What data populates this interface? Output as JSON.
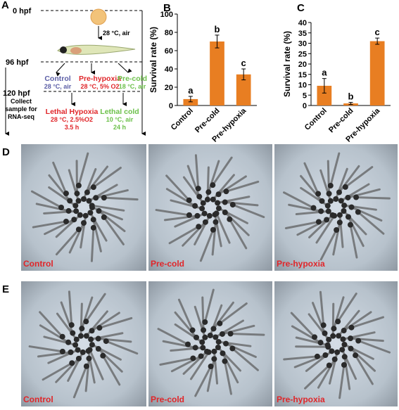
{
  "diagram": {
    "panel": "A",
    "t0": "0 hpf",
    "t96": "96 hpf",
    "t120": "120 hpf",
    "egg_cond": "28 °C, air",
    "control": "Control",
    "control_cond": "28 °C, air",
    "prehyp": "Pre-hypoxia",
    "prehyp_cond": "28 °C, 5% O2",
    "precold": "Pre-cold",
    "precold_cond": "18 °C, air",
    "collect": [
      "Collect",
      "sample for",
      "RNA-seq"
    ],
    "lethal_hyp": "Lethal Hypoxia",
    "lethal_hyp_cond": "28 °C, 2.5%O2",
    "lethal_hyp_time": "3.5 h",
    "lethal_cold": "Lethal cold",
    "lethal_cold_cond": "10 °C, air",
    "lethal_cold_time": "24 h"
  },
  "chart_data": [
    {
      "type": "bar",
      "panel": "B",
      "y_label": "Survival rate (%)",
      "categories": [
        "Control",
        "Pre-cold",
        "Pre-hypoxia"
      ],
      "values": [
        7,
        70,
        34
      ],
      "errors": [
        3,
        7,
        6
      ],
      "annotations": [
        "a",
        "b",
        "c"
      ],
      "color": "#e87e22",
      "ylim": [
        0,
        100
      ],
      "yticks": [
        0,
        20,
        40,
        60,
        80,
        100
      ]
    },
    {
      "type": "bar",
      "panel": "C",
      "y_label": "Survival rate (%)",
      "categories": [
        "Control",
        "Pre-cold",
        "Pre-hypoxia"
      ],
      "values": [
        9.5,
        1,
        31
      ],
      "errors": [
        3.5,
        0.5,
        1.5
      ],
      "annotations": [
        "a",
        "b",
        "c"
      ],
      "color": "#e87e22",
      "ylim": [
        0,
        40
      ],
      "yticks": [
        0,
        5,
        10,
        15,
        20,
        25,
        30,
        35,
        40
      ]
    }
  ],
  "photos": {
    "rows": [
      {
        "panel": "D",
        "labels": [
          "Control",
          "Pre-cold",
          "Pre-hypoxia"
        ]
      },
      {
        "panel": "E",
        "labels": [
          "Control",
          "Pre-cold",
          "Pre-hypoxia"
        ]
      }
    ]
  }
}
